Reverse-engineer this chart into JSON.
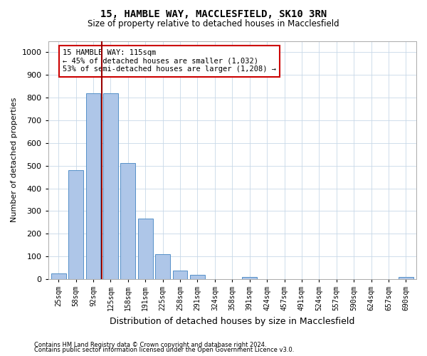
{
  "title1": "15, HAMBLE WAY, MACCLESFIELD, SK10 3RN",
  "title2": "Size of property relative to detached houses in Macclesfield",
  "xlabel": "Distribution of detached houses by size in Macclesfield",
  "ylabel": "Number of detached properties",
  "categories": [
    "25sqm",
    "58sqm",
    "92sqm",
    "125sqm",
    "158sqm",
    "191sqm",
    "225sqm",
    "258sqm",
    "291sqm",
    "324sqm",
    "358sqm",
    "391sqm",
    "424sqm",
    "457sqm",
    "491sqm",
    "524sqm",
    "557sqm",
    "590sqm",
    "624sqm",
    "657sqm",
    "690sqm"
  ],
  "values": [
    25,
    480,
    820,
    820,
    510,
    265,
    110,
    38,
    20,
    0,
    0,
    10,
    0,
    0,
    0,
    0,
    0,
    0,
    0,
    0,
    8
  ],
  "bar_color": "#aec6e8",
  "bar_edge_color": "#5590c8",
  "vline_color": "#990000",
  "annotation_text": "15 HAMBLE WAY: 115sqm\n← 45% of detached houses are smaller (1,032)\n53% of semi-detached houses are larger (1,208) →",
  "annotation_box_color": "#ffffff",
  "annotation_box_edge_color": "#cc0000",
  "ylim": [
    0,
    1050
  ],
  "yticks": [
    0,
    100,
    200,
    300,
    400,
    500,
    600,
    700,
    800,
    900,
    1000
  ],
  "footnote1": "Contains HM Land Registry data © Crown copyright and database right 2024.",
  "footnote2": "Contains public sector information licensed under the Open Government Licence v3.0.",
  "bg_color": "#ffffff",
  "grid_color": "#c8d8e8"
}
